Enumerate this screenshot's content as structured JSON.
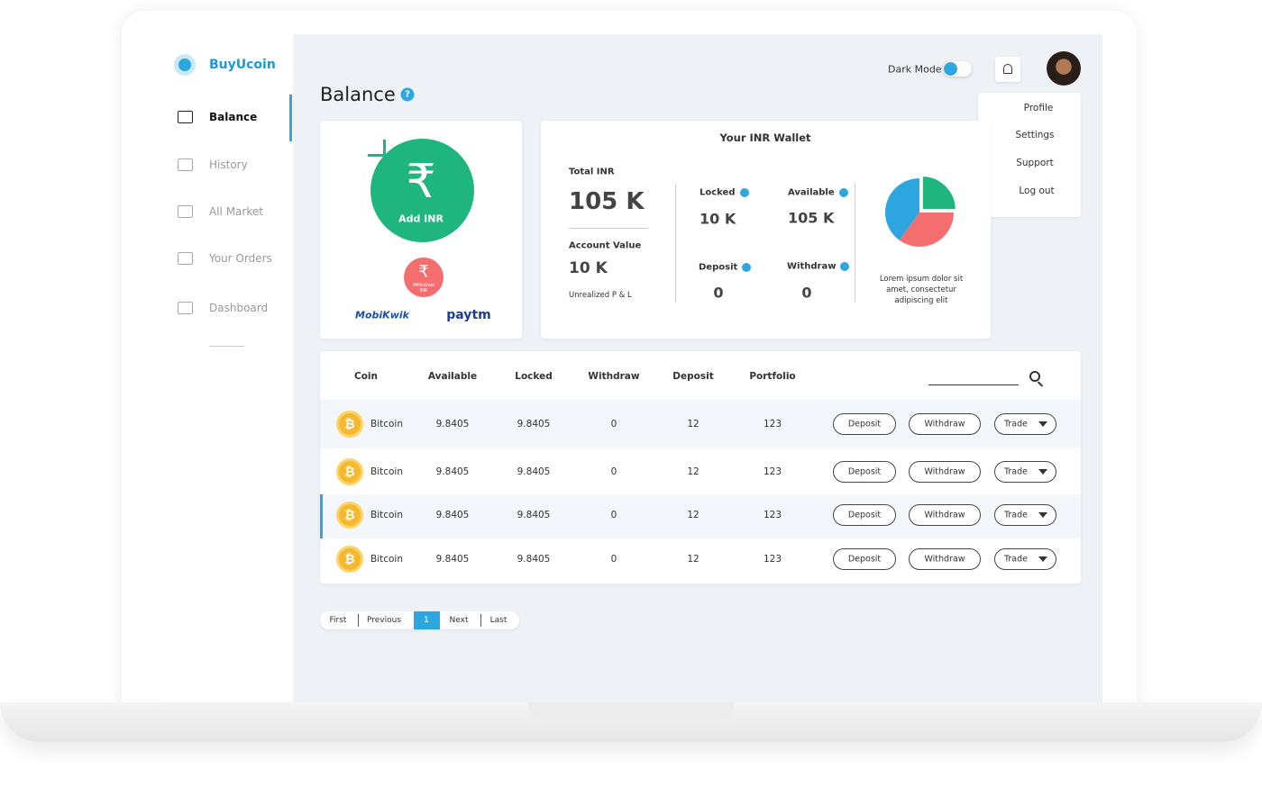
{
  "brand": "BuyUcoin",
  "nav": [
    "Balance",
    "History",
    "All Market",
    "Your Orders",
    "Dashboard"
  ],
  "page_title": "Balance",
  "help_icon": "?",
  "topbar": {
    "dark_mode": "Dark Mode",
    "menu": [
      "Profile",
      "Settings",
      "Support",
      "Log out"
    ]
  },
  "add_card": {
    "currency_symbol": "₹",
    "add_inr": "Add INR",
    "withdraw_inr": "Withdraw INR",
    "logos": [
      "MobiKwik",
      "paytm"
    ]
  },
  "wallet": {
    "title": "Your INR Wallet",
    "total_inr": {
      "label": "Total INR",
      "value": "105 K"
    },
    "account_value": {
      "label": "Account Value",
      "value": "10 K"
    },
    "unrealized": "Unrealized P & L",
    "locked": {
      "label": "Locked",
      "value": "10 K"
    },
    "available": {
      "label": "Available",
      "value": "105 K"
    },
    "deposit": {
      "label": "Deposit",
      "value": 0
    },
    "withdraw": {
      "label": "Withdraw",
      "value": 0
    },
    "pie": [
      {
        "color": "#1fb57e",
        "value": 25
      },
      {
        "color": "#f46e70",
        "value": 35
      },
      {
        "color": "#2ea7e0",
        "value": 40
      }
    ],
    "caption": "Lorem ipsum dolor sit amet, consectetur adipiscing elit"
  },
  "table": {
    "coin_symbol": "₿",
    "columns": [
      "Coin",
      "Available",
      "Locked",
      "Withdraw",
      "Deposit",
      "Portfolio"
    ],
    "rows": [
      [
        "Bitcoin",
        9.8405,
        9.8405,
        0,
        12,
        123
      ],
      [
        "Bitcoin",
        9.8405,
        9.8405,
        0,
        12,
        123
      ],
      [
        "Bitcoin",
        9.8405,
        9.8405,
        0,
        12,
        123
      ],
      [
        "Bitcoin",
        9.8405,
        9.8405,
        0,
        12,
        123
      ]
    ],
    "actions": [
      "Deposit",
      "Withdraw",
      "Trade"
    ]
  },
  "pagination": [
    "First",
    "Previous",
    "1",
    "Next",
    "Last"
  ]
}
